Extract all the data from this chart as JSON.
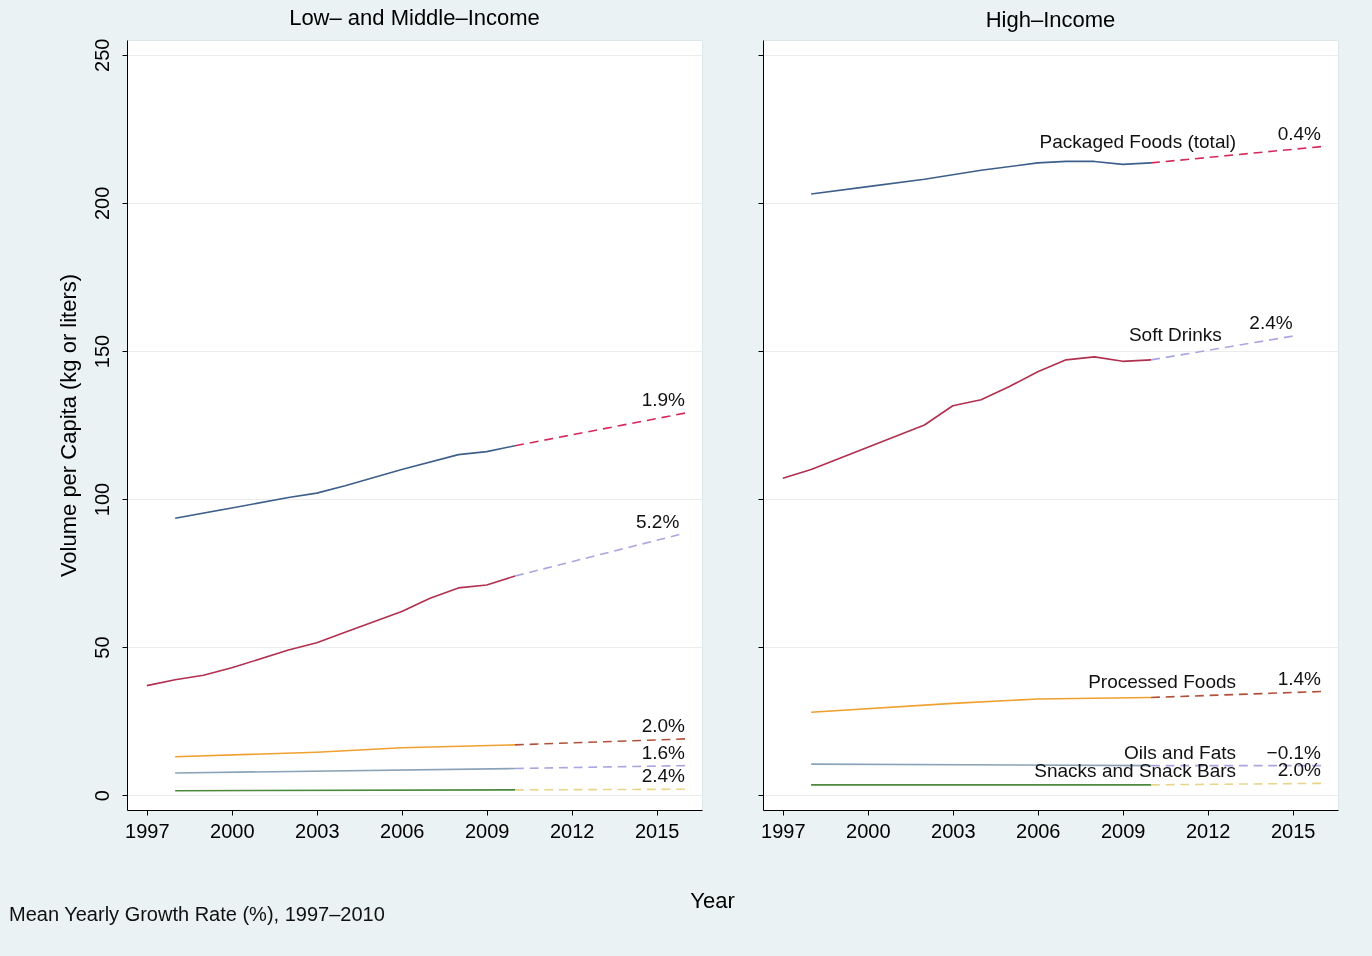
{
  "chart_data": [
    {
      "type": "line",
      "title": "Low– and Middle–Income",
      "xlabel": "Year",
      "ylabel": "Volume per Capita (kg or liters)",
      "xlim": [
        1996.3,
        2016.6
      ],
      "ylim": [
        -5,
        255
      ],
      "xticks": [
        1997,
        2000,
        2003,
        2006,
        2009,
        2012,
        2015
      ],
      "yticks": [
        0,
        50,
        100,
        150,
        200,
        250
      ],
      "grid": "y",
      "series": [
        {
          "color": "#3e5f8a",
          "line_style": "solid",
          "x": [
            1998,
            2000,
            2002,
            2003,
            2004,
            2006,
            2008,
            2009,
            2010
          ],
          "values": [
            93.5,
            97,
            100.5,
            102,
            104.5,
            110,
            115,
            116,
            118
          ]
        },
        {
          "color": "#d6275a",
          "line_style": "dashed",
          "x": [
            2010,
            2016
          ],
          "values": [
            118,
            129
          ]
        },
        {
          "color": "#b03050",
          "line_style": "solid",
          "x": [
            1997,
            1998,
            1999,
            2000,
            2002,
            2003,
            2004,
            2006,
            2007,
            2008,
            2009,
            2010
          ],
          "values": [
            37,
            39,
            40.5,
            43,
            49,
            51.5,
            55,
            62,
            66.5,
            70,
            71,
            74
          ]
        },
        {
          "color": "#a9a6e0",
          "line_style": "dashed",
          "x": [
            2010,
            2015.8
          ],
          "values": [
            74,
            88
          ]
        },
        {
          "color": "#f0a030",
          "line_style": "solid",
          "x": [
            1998,
            2003,
            2006,
            2010
          ],
          "values": [
            13,
            14.5,
            16,
            17
          ]
        },
        {
          "color": "#b0503a",
          "line_style": "dashed",
          "x": [
            2010,
            2016
          ],
          "values": [
            17,
            19
          ]
        },
        {
          "color": "#8aa3b8",
          "line_style": "solid",
          "x": [
            1998,
            2010
          ],
          "values": [
            7.5,
            9
          ]
        },
        {
          "color": "#a9a6e0",
          "line_style": "dashed",
          "x": [
            2010,
            2016
          ],
          "values": [
            9,
            10
          ]
        },
        {
          "color": "#4a8a3a",
          "line_style": "solid",
          "x": [
            1998,
            2010
          ],
          "values": [
            1.5,
            1.8
          ]
        },
        {
          "color": "#e8d58a",
          "line_style": "dashed",
          "x": [
            2010,
            2016
          ],
          "values": [
            1.8,
            2
          ]
        }
      ],
      "annotations": [
        {
          "text": "1.9%",
          "x": 2016,
          "y": 129
        },
        {
          "text": "5.2%",
          "x": 2015.8,
          "y": 88
        },
        {
          "text": "2.0%",
          "x": 2016,
          "y": 19
        },
        {
          "text": "1.6%",
          "x": 2016,
          "y": 10
        },
        {
          "text": "2.4%",
          "x": 2016,
          "y": 2
        },
        "Mean Yearly Growth Rate (%), 1997–2010"
      ]
    },
    {
      "type": "line",
      "title": "High–Income",
      "xlim": [
        1996.3,
        2016.6
      ],
      "ylim": [
        -5,
        255
      ],
      "xticks": [
        1997,
        2000,
        2003,
        2006,
        2009,
        2012,
        2015
      ],
      "yticks": [
        0,
        50,
        100,
        150,
        200,
        250
      ],
      "grid": "y",
      "tick_labels": "x",
      "series": [
        {
          "color": "#3e5f8a",
          "line_style": "solid",
          "x": [
            1998,
            2000,
            2002,
            2004,
            2006,
            2007,
            2008,
            2009,
            2010
          ],
          "values": [
            203,
            205.5,
            208,
            211,
            213.5,
            214,
            214,
            213,
            213.5
          ]
        },
        {
          "color": "#d6275a",
          "line_style": "dashed",
          "x": [
            2010,
            2016
          ],
          "values": [
            213.5,
            219
          ]
        },
        {
          "color": "#b03050",
          "line_style": "solid",
          "x": [
            1997,
            1998,
            2000,
            2002,
            2003,
            2004,
            2005,
            2006,
            2007,
            2008,
            2009,
            2010
          ],
          "values": [
            107,
            110,
            117.5,
            125,
            131.5,
            133.5,
            138,
            143,
            147,
            148,
            146.5,
            147
          ]
        },
        {
          "color": "#a9a6e0",
          "line_style": "dashed",
          "x": [
            2010,
            2015
          ],
          "values": [
            147,
            155
          ]
        },
        {
          "color": "#f0a030",
          "line_style": "solid",
          "x": [
            1998,
            2003,
            2006,
            2010
          ],
          "values": [
            28,
            31,
            32.5,
            33
          ]
        },
        {
          "color": "#b0503a",
          "line_style": "dashed",
          "x": [
            2010,
            2016
          ],
          "values": [
            33,
            35
          ]
        },
        {
          "color": "#8aa3b8",
          "line_style": "solid",
          "x": [
            1998,
            2010
          ],
          "values": [
            10.5,
            10
          ]
        },
        {
          "color": "#a9a6e0",
          "line_style": "dashed",
          "x": [
            2010,
            2016
          ],
          "values": [
            10,
            10
          ]
        },
        {
          "color": "#4a8a3a",
          "line_style": "solid",
          "x": [
            1998,
            2010
          ],
          "values": [
            3.5,
            3.5
          ]
        },
        {
          "color": "#e8d58a",
          "line_style": "dashed",
          "x": [
            2010,
            2016
          ],
          "values": [
            3.5,
            4
          ]
        }
      ],
      "annotations": [
        {
          "text": "Packaged Foods (total)",
          "x": 2013,
          "y": 216.25
        },
        {
          "text": "0.4%",
          "x": 2016,
          "y": 219
        },
        {
          "text": "Soft Drinks",
          "x": 2012.5,
          "y": 151
        },
        {
          "text": "2.4%",
          "x": 2015,
          "y": 155
        },
        {
          "text": "Processed Foods",
          "x": 2013,
          "y": 34
        },
        {
          "text": "1.4%",
          "x": 2016,
          "y": 35
        },
        {
          "text": "Oils and Fats",
          "x": 2013,
          "y": 10
        },
        {
          "text": "−0.1%",
          "x": 2016,
          "y": 10
        },
        {
          "text": "Snacks and Snack Bars",
          "x": 2013,
          "y": 3.75
        },
        {
          "text": "2.0%",
          "x": 2016,
          "y": 4
        }
      ]
    }
  ]
}
